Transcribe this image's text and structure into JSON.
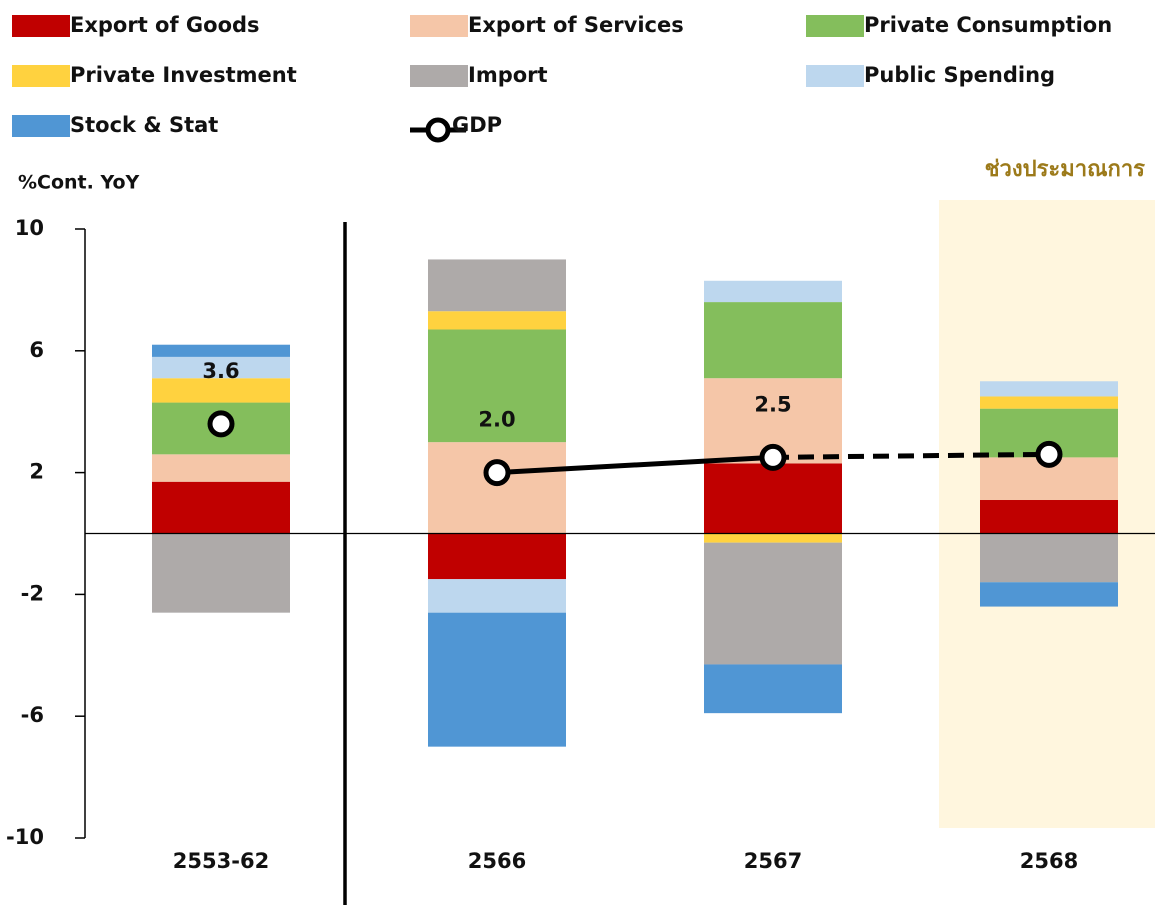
{
  "chart_data": {
    "type": "bar",
    "y_label": "%Cont. YoY",
    "annotation": "ช่วงประมาณการ",
    "annotation_color": "#9c7a1a",
    "shade_color": "#fff6de",
    "shaded_category": 3,
    "divider_after": 0,
    "stacked": true,
    "categories": [
      "2553-62",
      "2566",
      "2567",
      "2568"
    ],
    "ylim": [
      -10,
      10
    ],
    "yticks": [
      -10,
      -6,
      -2,
      2,
      6,
      10
    ],
    "series": [
      {
        "name": "Export of Goods",
        "color": "#c00000",
        "values": [
          1.7,
          -1.5,
          2.3,
          1.1
        ]
      },
      {
        "name": "Export of Services",
        "color": "#f5c6a8",
        "values": [
          0.9,
          3.0,
          2.8,
          1.4
        ]
      },
      {
        "name": "Private Consumption",
        "color": "#84be5c",
        "values": [
          1.7,
          3.7,
          2.5,
          1.6
        ]
      },
      {
        "name": "Private Investment",
        "color": "#ffd23f",
        "values": [
          0.8,
          0.6,
          -0.3,
          0.4
        ]
      },
      {
        "name": "Import",
        "color": "#aeaaa9",
        "values": [
          -2.6,
          1.7,
          -4.0,
          -1.6
        ]
      },
      {
        "name": "Public Spending",
        "color": "#bdd7ee",
        "values": [
          0.7,
          -1.1,
          0.7,
          0.5
        ]
      },
      {
        "name": "Stock & Stat",
        "color": "#5096d4",
        "values": [
          0.4,
          -4.4,
          -1.6,
          -0.8
        ]
      }
    ],
    "line": {
      "name": "GDP",
      "color": "#000000",
      "values": [
        3.6,
        2.0,
        2.5,
        2.6
      ],
      "value_labels": [
        "3.6",
        "2.0",
        "2.5",
        null
      ],
      "dashed_from": 2
    }
  }
}
